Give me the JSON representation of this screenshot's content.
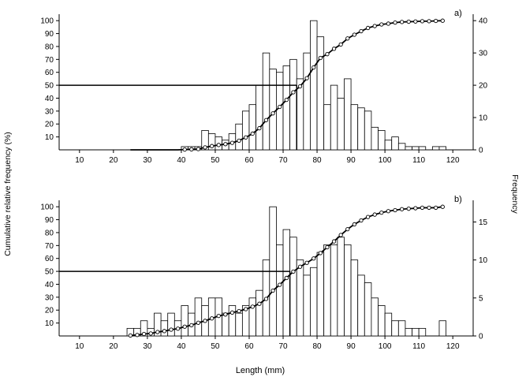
{
  "figure": {
    "ylabel_left": "Cumulative relative frequency (%)",
    "ylabel_right": "Frequency",
    "xlabel": "Length (mm)",
    "background_color": "#ffffff",
    "line_color": "#000000",
    "bar_fill_color": "#ffffff"
  },
  "chart_data": [
    {
      "type": "bar",
      "subtype": "histogram-with-cumulative-curve",
      "panel_label": "a)",
      "x_start": 24,
      "bin_width": 2,
      "frequencies": [
        0,
        0,
        0,
        0,
        0,
        0,
        0,
        0,
        1,
        1,
        1,
        6,
        5,
        4,
        3,
        5,
        8,
        12,
        14,
        20,
        30,
        25,
        24,
        26,
        28,
        22,
        30,
        40,
        35,
        14,
        20,
        16,
        22,
        14,
        13,
        12,
        7,
        6,
        3,
        4,
        2,
        1,
        1,
        1,
        0,
        1,
        1
      ],
      "x_ticks": [
        10,
        20,
        30,
        40,
        50,
        60,
        70,
        80,
        90,
        100,
        110,
        120
      ],
      "left_axis_ticks": [
        10,
        20,
        30,
        40,
        50,
        60,
        70,
        80,
        90,
        100
      ],
      "right_axis_ticks": [
        0,
        10,
        20,
        30,
        40
      ],
      "right_axis_max": 42,
      "left_axis_max": 105,
      "x_range": [
        4,
        126
      ],
      "median_length_mm": 74,
      "median_percent": 50,
      "ylabel_left": "Cumulative relative frequency (%)",
      "ylabel_right": "Frequency",
      "xlabel": "Length (mm)"
    },
    {
      "type": "bar",
      "subtype": "histogram-with-cumulative-curve",
      "panel_label": "b)",
      "x_start": 24,
      "bin_width": 2,
      "frequencies": [
        1,
        1,
        2,
        1,
        3,
        2,
        3,
        2,
        4,
        3,
        5,
        4,
        5,
        5,
        3,
        4,
        3,
        4,
        5,
        6,
        10,
        17,
        12,
        14,
        13,
        10,
        8,
        9,
        11,
        12,
        12,
        13,
        12,
        10,
        8,
        7,
        5,
        4,
        3,
        2,
        2,
        1,
        1,
        1,
        0,
        0,
        2
      ],
      "x_ticks": [
        10,
        20,
        30,
        40,
        50,
        60,
        70,
        80,
        90,
        100,
        110,
        120
      ],
      "left_axis_ticks": [
        10,
        20,
        30,
        40,
        50,
        60,
        70,
        80,
        90,
        100
      ],
      "right_axis_ticks": [
        0,
        5,
        10,
        15
      ],
      "right_axis_max": 17.85,
      "left_axis_max": 105,
      "x_range": [
        4,
        126
      ],
      "median_length_mm": 72,
      "median_percent": 50,
      "ylabel_left": "Cumulative relative frequency (%)",
      "ylabel_right": "Frequency",
      "xlabel": "Length (mm)"
    }
  ]
}
